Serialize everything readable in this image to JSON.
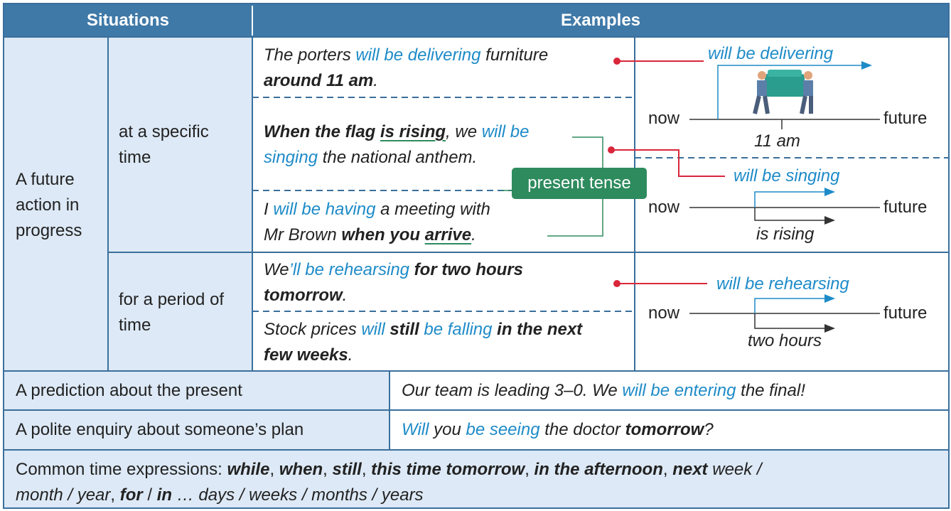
{
  "header": {
    "situations": "Situations",
    "examples": "Examples"
  },
  "situation": "A future action in progress",
  "subs": [
    "at a specific time",
    "for a period of time"
  ],
  "examples": [
    {
      "lines": [
        [
          {
            "text": "The porters ",
            "style": "italic"
          },
          {
            "text": "will be delivering",
            "style": "italic blue"
          },
          {
            "text": " furniture",
            "style": "italic"
          }
        ],
        [
          {
            "text": "around 11 am",
            "style": "italic bold"
          },
          {
            "text": ".",
            "style": "italic"
          }
        ]
      ]
    },
    {
      "lines": [
        [
          {
            "text": "When the flag ",
            "style": "italic bold"
          },
          {
            "text": "is rising",
            "style": "italic bold underline"
          },
          {
            "text": ", we ",
            "style": "italic"
          },
          {
            "text": "will be",
            "style": "italic blue"
          }
        ],
        [
          {
            "text": "singing",
            "style": "italic blue"
          },
          {
            "text": " the national anthem.",
            "style": "italic"
          }
        ]
      ]
    },
    {
      "lines": [
        [
          {
            "text": "I ",
            "style": "italic"
          },
          {
            "text": "will be having",
            "style": "italic blue"
          },
          {
            "text": " a meeting with",
            "style": "italic"
          }
        ],
        [
          {
            "text": "Mr Brown ",
            "style": "italic"
          },
          {
            "text": "when you ",
            "style": "italic bold"
          },
          {
            "text": "arrive",
            "style": "italic bold underline"
          },
          {
            "text": ".",
            "style": "italic"
          }
        ]
      ]
    },
    {
      "lines": [
        [
          {
            "text": "We",
            "style": "italic"
          },
          {
            "text": "’ll be rehearsing",
            "style": "italic blue"
          },
          {
            "text": " for two hours",
            "style": "italic bold"
          }
        ],
        [
          {
            "text": "tomorrow",
            "style": "italic bold"
          },
          {
            "text": ".",
            "style": "italic"
          }
        ]
      ]
    },
    {
      "lines": [
        [
          {
            "text": "Stock prices ",
            "style": "italic"
          },
          {
            "text": "will",
            "style": "italic blue"
          },
          {
            "text": " still",
            "style": "italic bold"
          },
          {
            "text": " be falling",
            "style": "italic blue"
          },
          {
            "text": " in the next",
            "style": "italic bold"
          }
        ],
        [
          {
            "text": "few weeks",
            "style": "italic bold"
          },
          {
            "text": ".",
            "style": "italic"
          }
        ]
      ]
    }
  ],
  "present_tense": "present tense",
  "diagrams": [
    {
      "label": "will be delivering",
      "now": "now",
      "future": "future",
      "time": "11 am"
    },
    {
      "label": "will be singing",
      "now": "now",
      "future": "future",
      "time": "is rising"
    },
    {
      "label": "will be rehearsing",
      "now": "now",
      "future": "future",
      "time": "two hours"
    }
  ],
  "rows": [
    {
      "situation": "A prediction about the present",
      "lines": [
        [
          {
            "text": "Our team is leading 3–0. We ",
            "style": "italic"
          },
          {
            "text": "will be entering",
            "style": "italic blue"
          },
          {
            "text": " the final!",
            "style": "italic"
          }
        ]
      ]
    },
    {
      "situation": "A polite enquiry about someone’s plan",
      "lines": [
        [
          {
            "text": "Will",
            "style": "italic blue"
          },
          {
            "text": " you ",
            "style": "italic"
          },
          {
            "text": "be seeing",
            "style": "italic blue"
          },
          {
            "text": " the doctor ",
            "style": "italic"
          },
          {
            "text": "tomorrow",
            "style": "italic bold"
          },
          {
            "text": "?",
            "style": "italic"
          }
        ]
      ]
    }
  ],
  "footer": {
    "lines": [
      [
        {
          "text": "Common time expressions: ",
          "style": "normal"
        },
        {
          "text": "while",
          "style": "italic bold"
        },
        {
          "text": ", ",
          "style": "normal"
        },
        {
          "text": "when",
          "style": "italic bold"
        },
        {
          "text": ", ",
          "style": "normal"
        },
        {
          "text": "still",
          "style": "italic bold"
        },
        {
          "text": ", ",
          "style": "normal"
        },
        {
          "text": "this time tomorrow",
          "style": "italic bold"
        },
        {
          "text": ", ",
          "style": "normal"
        },
        {
          "text": "in the afternoon",
          "style": "italic bold"
        },
        {
          "text": ", ",
          "style": "normal"
        },
        {
          "text": "next",
          "style": "italic bold"
        },
        {
          "text": " week /",
          "style": "italic"
        }
      ],
      [
        {
          "text": "month / year",
          "style": "italic"
        },
        {
          "text": ", ",
          "style": "normal"
        },
        {
          "text": "for",
          "style": "italic bold"
        },
        {
          "text": " / ",
          "style": "normal"
        },
        {
          "text": "in",
          "style": "italic bold"
        },
        {
          "text": " … days / weeks / months / years",
          "style": "italic"
        }
      ]
    ]
  }
}
